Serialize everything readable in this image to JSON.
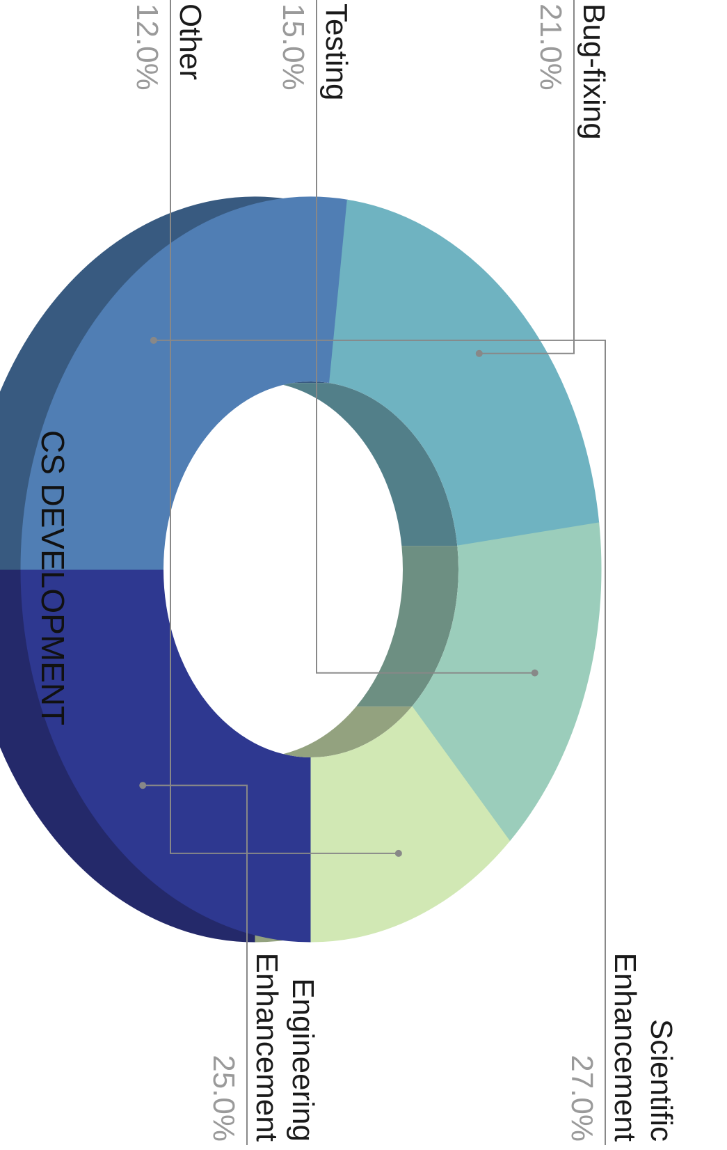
{
  "chart_data": {
    "type": "pie",
    "title": "CS DEVELOPMENT",
    "rotation": "90deg-clockwise",
    "slices": [
      {
        "label": "Engineering\nEnhancement",
        "value": 25.0,
        "pct_text": "25.0%",
        "color": "#2e3890",
        "depth_color": "#24296a"
      },
      {
        "label": "Scientific\nEnhancement",
        "value": 27.0,
        "pct_text": "27.0%",
        "color": "#507eb4",
        "depth_color": "#385a80"
      },
      {
        "label": "Bug-fixing",
        "value": 21.0,
        "pct_text": "21.0%",
        "color": "#6fb3c1",
        "depth_color": "#527f89"
      },
      {
        "label": "Testing",
        "value": 15.0,
        "pct_text": "15.0%",
        "color": "#9bcdbb",
        "depth_color": "#6d8f82"
      },
      {
        "label": "Other",
        "value": 12.0,
        "pct_text": "12.0%",
        "color": "#d1e8b4",
        "depth_color": "#93a27f"
      }
    ]
  }
}
